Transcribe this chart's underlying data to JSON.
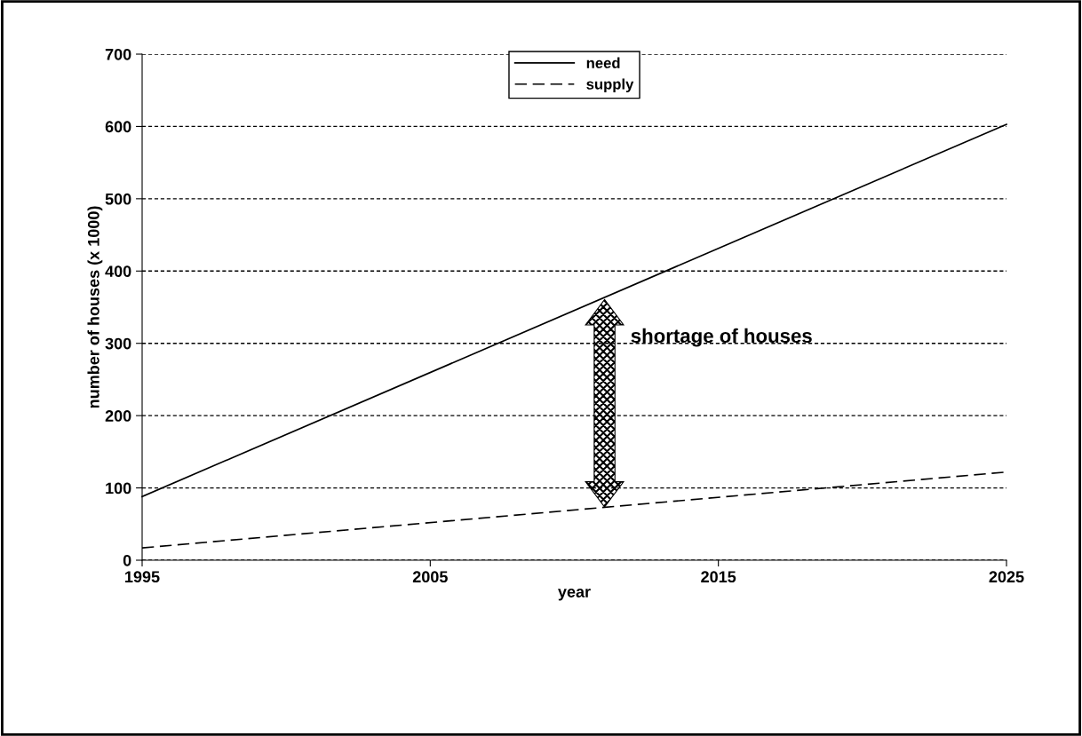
{
  "chart_data": {
    "type": "line",
    "xlabel": "year",
    "ylabel": "number of houses (x 1000)",
    "xlim": [
      1995,
      2025
    ],
    "xticks": [
      1995,
      2005,
      2015,
      2025
    ],
    "ylim": [
      0,
      700
    ],
    "yticks": [
      0,
      100,
      200,
      300,
      400,
      500,
      600,
      700
    ],
    "grid": "y",
    "legend": "top",
    "marker": "none",
    "x": [
      1995,
      2025
    ],
    "series": [
      {
        "name": "need",
        "color": "#000000",
        "line_style": "solid",
        "values": [
          88,
          603
        ]
      },
      {
        "name": "supply",
        "color": "#000000",
        "line_style": "dashed",
        "values": [
          17,
          122
        ]
      }
    ],
    "annotations": [
      "shortage of houses"
    ]
  }
}
